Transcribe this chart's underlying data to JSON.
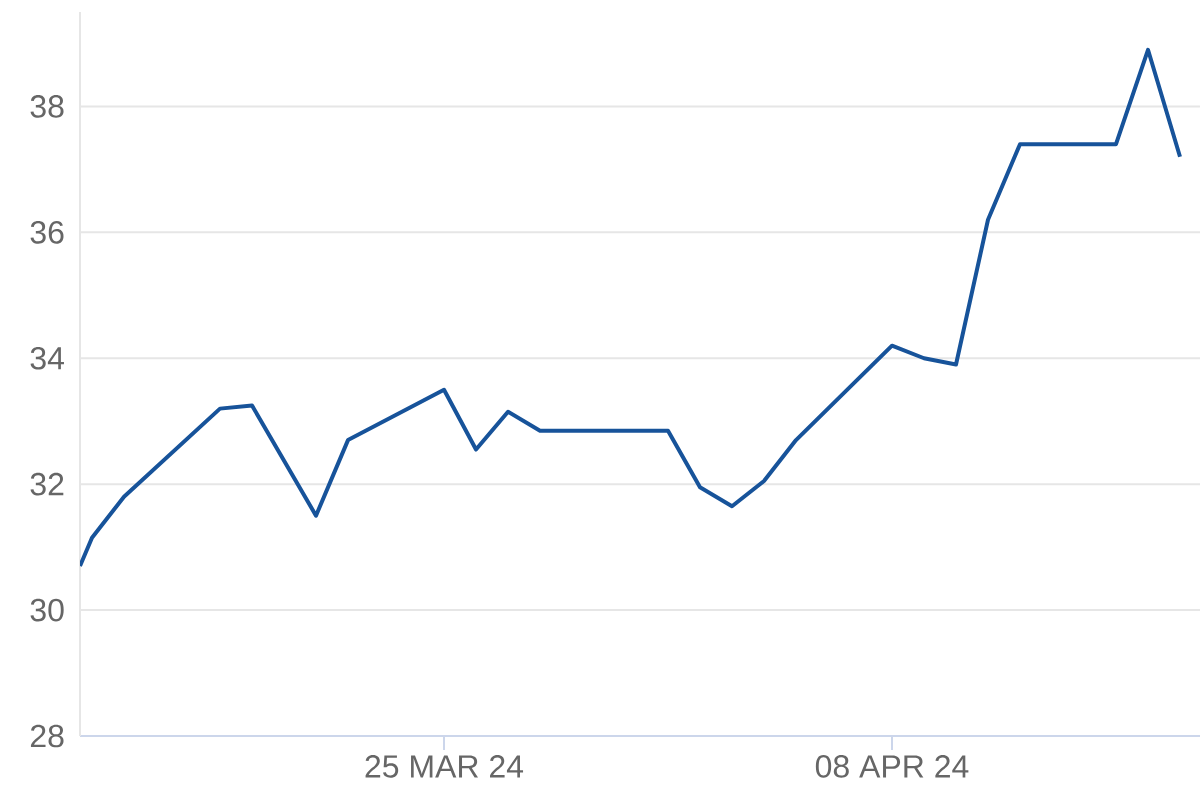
{
  "chart_data": {
    "type": "line",
    "x": [
      "2024-03-13T15:00",
      "2024-03-14",
      "2024-03-15",
      "2024-03-18",
      "2024-03-19",
      "2024-03-21",
      "2024-03-22",
      "2024-03-25",
      "2024-03-26",
      "2024-03-27",
      "2024-03-28",
      "2024-04-01",
      "2024-04-02",
      "2024-04-03",
      "2024-04-04",
      "2024-04-05",
      "2024-04-08",
      "2024-04-09",
      "2024-04-10",
      "2024-04-11",
      "2024-04-12",
      "2024-04-15",
      "2024-04-16",
      "2024-04-17"
    ],
    "series": [
      {
        "color": "#17539a",
        "values": [
          30.7,
          31.15,
          31.8,
          33.2,
          33.25,
          31.5,
          32.7,
          33.5,
          32.55,
          33.15,
          32.85,
          32.85,
          31.95,
          31.65,
          32.05,
          32.7,
          34.2,
          34.0,
          33.9,
          36.2,
          37.4,
          37.4,
          38.9,
          37.2
        ]
      }
    ],
    "xlim": [
      "2024-03-13T15:00",
      "2024-04-17T15:00"
    ],
    "ylim": [
      28,
      39.5
    ],
    "xticks": [
      {
        "value": "2024-03-25",
        "label": "25 MAR 24"
      },
      {
        "value": "2024-04-08",
        "label": "08 APR 24"
      }
    ],
    "yticks": [
      28,
      30,
      32,
      34,
      36,
      38
    ],
    "grid": "y",
    "marker": "none",
    "line_style": "solid"
  }
}
